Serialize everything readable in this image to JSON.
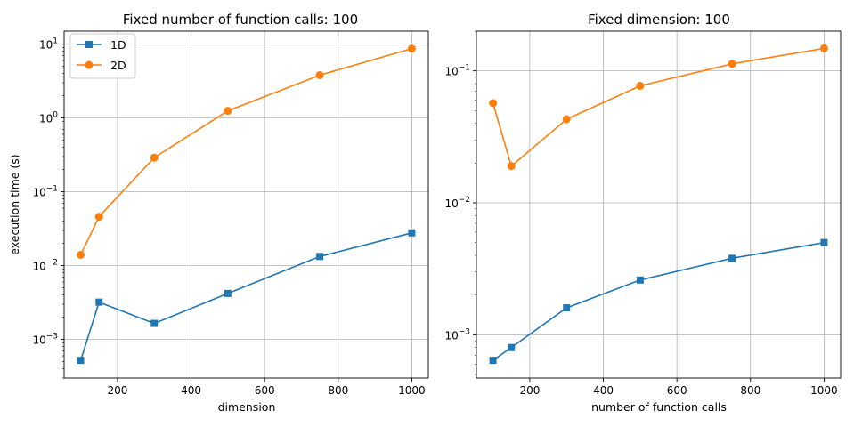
{
  "chart_data": [
    {
      "type": "line",
      "title": "Fixed number of function calls: 100",
      "xlabel": "dimension",
      "ylabel": "execution time (s)",
      "yscale": "log",
      "xlim": [
        55,
        1045
      ],
      "ylim": [
        0.0003,
        15
      ],
      "x_ticks": [
        200,
        400,
        600,
        800,
        1000
      ],
      "y_ticks": [
        0.001,
        0.01,
        0.1,
        1,
        10
      ],
      "y_tick_labels": [
        [
          "10",
          "−3"
        ],
        [
          "10",
          "−2"
        ],
        [
          "10",
          "−1"
        ],
        [
          "10",
          "0"
        ],
        [
          "10",
          "1"
        ]
      ],
      "grid": true,
      "legend": "upper-left",
      "x": [
        100,
        150,
        300,
        500,
        750,
        1000
      ],
      "series": [
        {
          "name": "1D",
          "marker": "square",
          "color": "#1f77b4",
          "values": [
            0.00052,
            0.0032,
            0.00165,
            0.0042,
            0.0133,
            0.0278
          ]
        },
        {
          "name": "2D",
          "marker": "circle",
          "color": "#ff7f0e",
          "values": [
            0.014,
            0.046,
            0.29,
            1.25,
            3.8,
            8.7
          ]
        }
      ]
    },
    {
      "type": "line",
      "title": "Fixed dimension: 100",
      "xlabel": "number of function calls",
      "ylabel": "",
      "yscale": "log",
      "xlim": [
        55,
        1045
      ],
      "ylim": [
        0.00047,
        0.2
      ],
      "x_ticks": [
        200,
        400,
        600,
        800,
        1000
      ],
      "y_ticks": [
        0.001,
        0.01,
        0.1
      ],
      "y_tick_labels": [
        [
          "10",
          "−3"
        ],
        [
          "10",
          "−2"
        ],
        [
          "10",
          "−1"
        ]
      ],
      "grid": true,
      "legend": "none",
      "x": [
        100,
        150,
        300,
        500,
        750,
        1000
      ],
      "series": [
        {
          "name": "1D",
          "marker": "square",
          "color": "#1f77b4",
          "values": [
            0.00064,
            0.0008,
            0.0016,
            0.0026,
            0.0038,
            0.005
          ]
        },
        {
          "name": "2D",
          "marker": "circle",
          "color": "#ff7f0e",
          "values": [
            0.057,
            0.019,
            0.043,
            0.077,
            0.113,
            0.148
          ]
        }
      ]
    }
  ]
}
